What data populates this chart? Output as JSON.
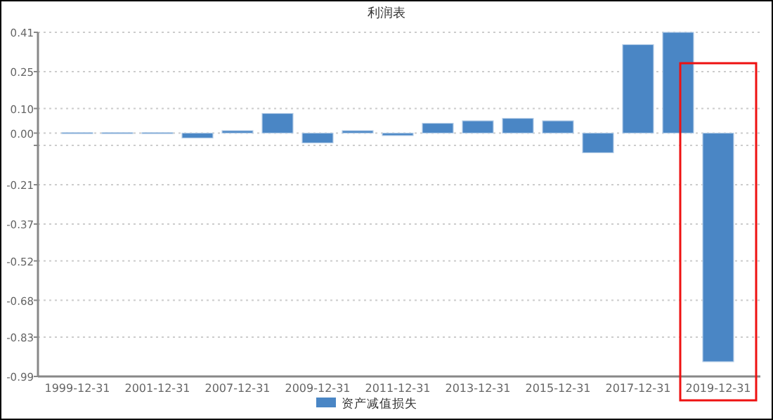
{
  "chart_data": {
    "type": "bar",
    "title": "利润表",
    "categories": [
      "1999-12-31",
      null,
      "2001-12-31",
      null,
      "2007-12-31",
      null,
      "2009-12-31",
      null,
      "2011-12-31",
      null,
      "2013-12-31",
      null,
      "2015-12-31",
      null,
      "2017-12-31",
      null,
      "2019-12-31"
    ],
    "series": [
      {
        "name": "资产减值损失",
        "color": "#4a86c5",
        "values": [
          0.002,
          0.002,
          0.002,
          -0.02,
          0.01,
          0.08,
          -0.04,
          0.01,
          -0.01,
          0.04,
          0.05,
          0.06,
          0.05,
          -0.08,
          0.36,
          0.41,
          -0.93
        ]
      }
    ],
    "ylim": [
      -0.99,
      0.41
    ],
    "yticks": [
      0.41,
      0.25,
      {
        "value": 0.1,
        "label": "0.10"
      },
      {
        "value": 0.0,
        "label": "0.00"
      },
      {
        "value": -0.05,
        "label": null
      },
      -0.21,
      -0.37,
      -0.52,
      -0.68,
      -0.83,
      -0.99
    ],
    "grid": "y",
    "legend": "bottom"
  }
}
